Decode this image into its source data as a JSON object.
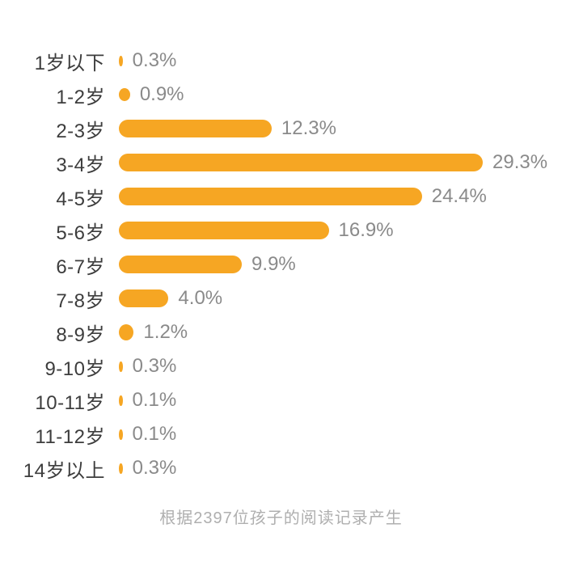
{
  "chart_data": {
    "type": "bar",
    "orientation": "horizontal",
    "title": "",
    "xlabel": "",
    "ylabel": "",
    "categories": [
      "1岁以下",
      "1-2岁",
      "2-3岁",
      "3-4岁",
      "4-5岁",
      "5-6岁",
      "6-7岁",
      "7-8岁",
      "8-9岁",
      "9-10岁",
      "10-11岁",
      "11-12岁",
      "14岁以上"
    ],
    "values": [
      0.3,
      0.9,
      12.3,
      29.3,
      24.4,
      16.9,
      9.9,
      4.0,
      1.2,
      0.3,
      0.1,
      0.1,
      0.3
    ],
    "value_labels": [
      "0.3%",
      "0.9%",
      "12.3%",
      "29.3%",
      "24.4%",
      "16.9%",
      "9.9%",
      "4.0%",
      "1.2%",
      "0.3%",
      "0.1%",
      "0.1%",
      "0.3%"
    ],
    "xlim": [
      0,
      29.3
    ],
    "grid": false,
    "legend": false,
    "footnote": "根据2397位孩子的阅读记录产生"
  },
  "colors": {
    "bar": "#f6a623",
    "label_text": "#3d3d3d",
    "value_text": "#8a8a8a",
    "footnote_text": "#afafaf",
    "background": "#ffffff"
  }
}
